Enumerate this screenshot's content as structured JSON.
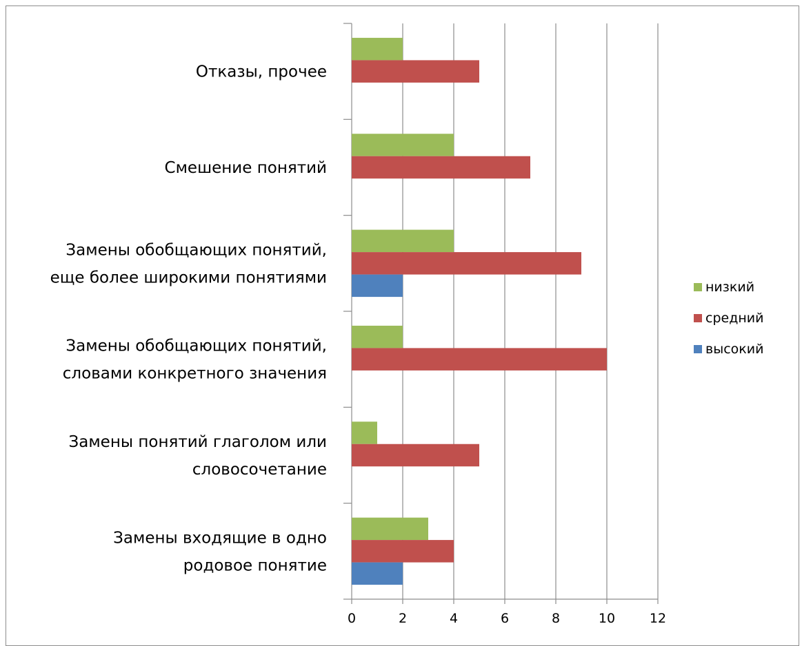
{
  "chart_data": {
    "type": "bar",
    "orientation": "horizontal",
    "categories": [
      [
        "Замены входящие в одно",
        "родовое понятие"
      ],
      [
        "Замены понятий глаголом или",
        "словосочетание"
      ],
      [
        "Замены обобщающих понятий,",
        "словами конкретного значения"
      ],
      [
        "Замены обобщающих понятий,",
        "еще более широкими понятиями"
      ],
      [
        "Смешение понятий"
      ],
      [
        "Отказы, прочее"
      ]
    ],
    "series": [
      {
        "name": "высокий",
        "color": "#4f81bd",
        "values": [
          2,
          0,
          0,
          2,
          0,
          0
        ]
      },
      {
        "name": "средний",
        "color": "#c0504d",
        "values": [
          4,
          5,
          10,
          9,
          7,
          5
        ]
      },
      {
        "name": "низкий",
        "color": "#9bbb59",
        "values": [
          3,
          1,
          2,
          4,
          4,
          2
        ]
      }
    ],
    "xticks": [
      "0",
      "2",
      "4",
      "6",
      "8",
      "10",
      "12"
    ],
    "xlim": [
      0,
      12
    ],
    "legend_position": "right",
    "grid": "vertical",
    "title": "",
    "xlabel": "",
    "ylabel": ""
  }
}
